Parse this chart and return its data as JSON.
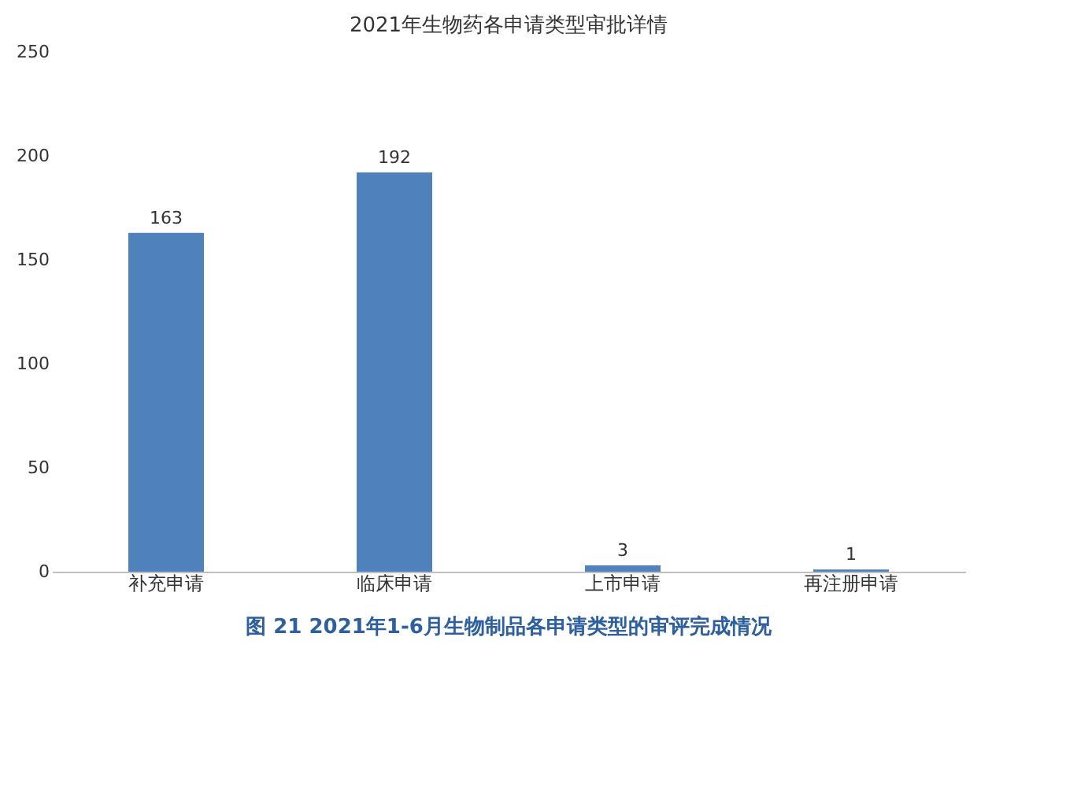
{
  "chart_data": {
    "type": "bar",
    "title": "2021年生物药各申请类型审批详情",
    "categories": [
      "补充申请",
      "临床申请",
      "上市申请",
      "再注册申请"
    ],
    "values": [
      163,
      192,
      3,
      1
    ],
    "color": "#4f81bd",
    "ylim": [
      0,
      250
    ],
    "yticks": [
      0,
      50,
      100,
      150,
      200,
      250
    ],
    "grid": false,
    "data_labels": true,
    "annotations": [
      "图 21 2021年1-6月生物制品各申请类型的审评完成情况"
    ]
  }
}
